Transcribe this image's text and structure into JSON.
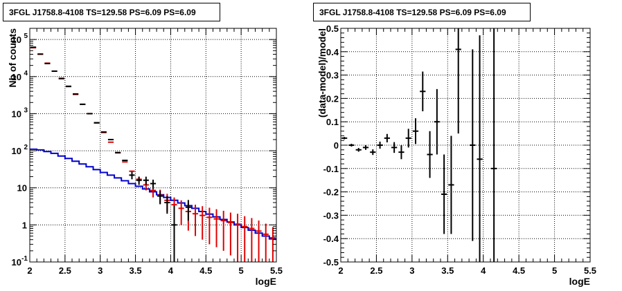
{
  "panels": [
    {
      "title": "3FGL J1758.8-4108 TS=129.58 PS=6.09 PS=6.09",
      "chart_data": {
        "type": "histogram",
        "xlabel": "logE",
        "ylabel": "Nb of counts",
        "xlim": [
          2,
          5.5
        ],
        "ylim": [
          0.1,
          200000
        ],
        "yscale": "log",
        "grid": true,
        "x_ticks": [
          "2",
          "2.5",
          "3",
          "3.5",
          "4",
          "4.5",
          "5",
          "5.5"
        ],
        "y_ticks": [
          {
            "value": 0.1,
            "base": "10",
            "exp": "-1"
          },
          {
            "value": 1,
            "base": "1",
            "exp": ""
          },
          {
            "value": 10,
            "base": "10",
            "exp": ""
          },
          {
            "value": 100,
            "base": "10",
            "exp": "2"
          },
          {
            "value": 1000,
            "base": "10",
            "exp": "3"
          },
          {
            "value": 10000,
            "base": "10",
            "exp": "4"
          },
          {
            "value": 100000,
            "base": "10",
            "exp": "5"
          }
        ],
        "bin_edges": [
          2.0,
          2.1,
          2.2,
          2.3,
          2.4,
          2.5,
          2.6,
          2.7,
          2.8,
          2.9,
          3.0,
          3.1,
          3.2,
          3.3,
          3.4,
          3.5,
          3.6,
          3.7,
          3.8,
          3.9,
          4.0,
          4.1,
          4.2,
          4.3,
          4.4,
          4.5,
          4.6,
          4.7,
          4.8,
          4.9,
          5.0,
          5.1,
          5.2,
          5.3,
          5.4,
          5.5
        ],
        "series": [
          {
            "kind": "model_points",
            "color": "#e00000",
            "x": [
              2.05,
              2.15,
              2.25,
              2.35,
              2.45,
              2.55,
              2.65,
              2.75,
              2.85,
              2.95,
              3.05,
              3.15,
              3.25,
              3.35,
              3.45,
              3.55,
              3.65,
              3.75,
              3.85,
              3.95,
              4.05,
              4.15,
              4.25,
              4.35,
              4.45,
              4.55,
              4.65,
              4.75,
              4.85,
              4.95,
              5.05,
              5.15,
              5.25,
              5.35,
              5.45
            ],
            "y": [
              60000,
              40000,
              23000,
              14000,
              9000,
              5500,
              3300,
              1800,
              1000,
              560,
              310,
              170,
              90,
              50,
              28,
              17,
              12,
              8.5,
              6.3,
              4.6,
              3.5,
              2.8,
              2.3,
              2.0,
              1.8,
              1.6,
              1.45,
              1.3,
              1.15,
              1.05,
              0.9,
              0.8,
              0.68,
              0.56,
              0.45
            ],
            "err_lo": [
              0,
              0,
              0,
              0,
              0,
              0,
              0,
              0,
              0,
              0,
              0,
              0,
              0,
              0,
              1.2,
              3.0,
              3.5,
              3.0,
              2.6,
              2.3,
              2.0,
              1.8,
              1.6,
              1.5,
              1.4,
              1.3,
              1.2,
              1.1,
              1.0,
              0.95,
              0.82,
              0.73,
              0.63,
              0.52,
              0.42
            ],
            "err_hi": [
              0,
              0,
              0,
              0,
              0,
              0,
              0,
              0,
              0,
              0,
              0,
              0,
              0,
              0,
              1.2,
              3.0,
              3.5,
              3.0,
              2.6,
              2.3,
              2.0,
              1.8,
              1.6,
              1.5,
              1.4,
              1.3,
              1.2,
              1.1,
              1.0,
              0.95,
              0.82,
              0.73,
              0.63,
              0.52,
              0.42
            ]
          },
          {
            "kind": "background_step",
            "color": "#0000cc",
            "y": [
              110,
              105,
              95,
              85,
              72,
              62,
              52,
              44,
              37,
              31,
              26,
              22,
              18.5,
              15.5,
              13,
              11,
              9.3,
              7.8,
              6.5,
              5.5,
              4.6,
              3.9,
              3.3,
              2.8,
              2.3,
              1.95,
              1.65,
              1.4,
              1.2,
              1.0,
              0.85,
              0.72,
              0.6,
              0.5,
              0.42
            ]
          },
          {
            "kind": "data_points",
            "color": "#000000",
            "x": [
              2.05,
              2.15,
              2.25,
              2.35,
              2.45,
              2.55,
              2.65,
              2.75,
              2.85,
              2.95,
              3.05,
              3.15,
              3.25,
              3.35,
              3.45,
              3.55,
              3.65,
              3.75,
              3.85,
              3.95,
              4.05,
              4.25
            ],
            "y": [
              62000,
              40500,
              22500,
              14000,
              8800,
              5400,
              3400,
              1780,
              1000,
              570,
              320,
              200,
              88,
              55,
              22,
              16,
              16,
              13,
              6,
              4,
              1,
              3
            ],
            "err_lo": [
              0,
              0,
              0,
              0,
              0,
              0,
              0,
              0,
              0,
              0,
              0,
              0,
              0,
              0,
              5,
              4,
              4,
              3.6,
              2.4,
              2.0,
              0.9,
              1.7
            ],
            "err_hi": [
              0,
              0,
              0,
              0,
              0,
              0,
              0,
              0,
              0,
              0,
              0,
              0,
              0,
              0,
              5,
              4,
              4,
              3.6,
              2.4,
              2.0,
              2.3,
              1.7
            ]
          }
        ]
      }
    },
    {
      "title": "3FGL J1758.8-4108 TS=129.58 PS=6.09 PS=6.09",
      "chart_data": {
        "type": "scatter",
        "xlabel": "logE",
        "ylabel": "(data-model)/model",
        "xlim": [
          2,
          5.5
        ],
        "ylim": [
          -0.5,
          0.5
        ],
        "grid": true,
        "x_ticks": [
          "2",
          "2.5",
          "3",
          "3.5",
          "4",
          "4.5",
          "5",
          "5.5"
        ],
        "y_ticks": [
          "-0.5",
          "-0.4",
          "-0.3",
          "-0.2",
          "-0.1",
          "0",
          "0.1",
          "0.2",
          "0.3",
          "0.4",
          "0.5"
        ],
        "series": [
          {
            "kind": "residuals",
            "color": "#000000",
            "x": [
              2.05,
              2.15,
              2.25,
              2.35,
              2.45,
              2.55,
              2.65,
              2.75,
              2.85,
              2.95,
              3.05,
              3.15,
              3.25,
              3.35,
              3.45,
              3.55,
              3.65,
              3.85,
              3.95,
              4.15
            ],
            "y": [
              0.03,
              0.0,
              -0.02,
              -0.01,
              -0.03,
              0.0,
              0.03,
              -0.01,
              -0.03,
              0.03,
              0.06,
              0.23,
              -0.04,
              0.1,
              -0.21,
              -0.17,
              0.41,
              0.0,
              -0.06,
              -0.1
            ],
            "err": [
              0.005,
              0.006,
              0.008,
              0.01,
              0.012,
              0.015,
              0.018,
              0.023,
              0.03,
              0.04,
              0.055,
              0.085,
              0.1,
              0.14,
              0.17,
              0.21,
              0.36,
              0.41,
              0.53,
              0.66
            ]
          }
        ]
      }
    }
  ]
}
